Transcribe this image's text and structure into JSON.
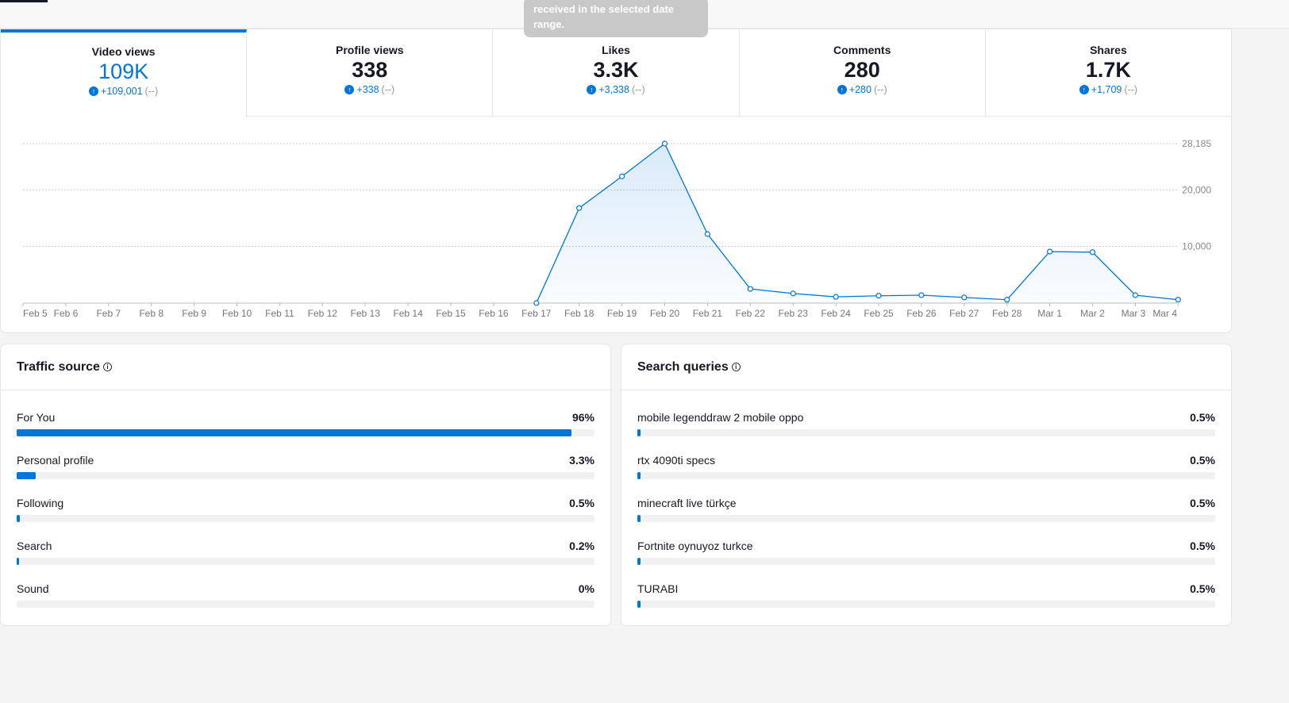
{
  "tooltip": "received in the selected date range.",
  "metrics": [
    {
      "label": "Video views",
      "value": "109K",
      "change": "+109,001",
      "prev": "(--)"
    },
    {
      "label": "Profile views",
      "value": "338",
      "change": "+338",
      "prev": "(--)"
    },
    {
      "label": "Likes",
      "value": "3.3K",
      "change": "+3,338",
      "prev": "(--)"
    },
    {
      "label": "Comments",
      "value": "280",
      "change": "+280",
      "prev": "(--)"
    },
    {
      "label": "Shares",
      "value": "1.7K",
      "change": "+1,709",
      "prev": "(--)"
    }
  ],
  "chart_data": {
    "type": "area",
    "title": "Video views",
    "categories": [
      "Feb 5",
      "Feb 6",
      "Feb 7",
      "Feb 8",
      "Feb 9",
      "Feb 10",
      "Feb 11",
      "Feb 12",
      "Feb 13",
      "Feb 14",
      "Feb 15",
      "Feb 16",
      "Feb 17",
      "Feb 18",
      "Feb 19",
      "Feb 20",
      "Feb 21",
      "Feb 22",
      "Feb 23",
      "Feb 24",
      "Feb 25",
      "Feb 26",
      "Feb 27",
      "Feb 28",
      "Mar 1",
      "Mar 2",
      "Mar 3",
      "Mar 4"
    ],
    "values": [
      null,
      null,
      null,
      null,
      null,
      null,
      null,
      null,
      null,
      null,
      null,
      null,
      0,
      16800,
      22400,
      28185,
      12200,
      2500,
      1700,
      1100,
      1300,
      1400,
      1000,
      600,
      9100,
      9000,
      1400,
      600
    ],
    "yticks": [
      {
        "v": 10000,
        "label": "10,000"
      },
      {
        "v": 20000,
        "label": "20,000"
      },
      {
        "v": 28185,
        "label": "28,185"
      }
    ],
    "ylim": [
      0,
      28185
    ],
    "color": "#0075db"
  },
  "traffic": {
    "title": "Traffic source",
    "items": [
      {
        "name": "For You",
        "pct": "96%",
        "value": 96
      },
      {
        "name": "Personal profile",
        "pct": "3.3%",
        "value": 3.3
      },
      {
        "name": "Following",
        "pct": "0.5%",
        "value": 0.5
      },
      {
        "name": "Search",
        "pct": "0.2%",
        "value": 0.2
      },
      {
        "name": "Sound",
        "pct": "0%",
        "value": 0
      }
    ]
  },
  "queries": {
    "title": "Search queries",
    "items": [
      {
        "name": "mobile legenddraw 2 mobile oppo",
        "pct": "0.5%",
        "value": 0.5
      },
      {
        "name": "rtx 4090ti specs",
        "pct": "0.5%",
        "value": 0.5
      },
      {
        "name": "minecraft live türkçe",
        "pct": "0.5%",
        "value": 0.5
      },
      {
        "name": "Fortnite oynuyoz turkce",
        "pct": "0.5%",
        "value": 0.5
      },
      {
        "name": "TURABI",
        "pct": "0.5%",
        "value": 0.5
      }
    ]
  }
}
